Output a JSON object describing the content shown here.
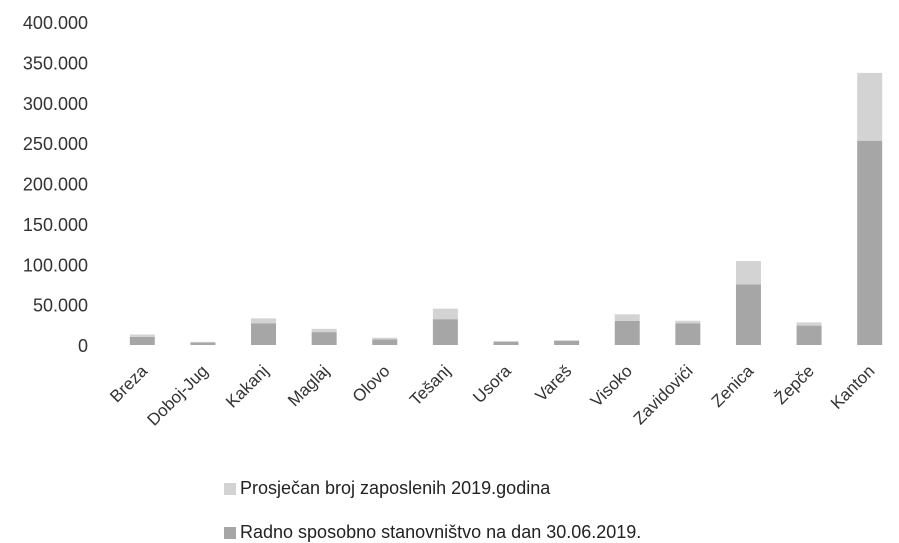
{
  "colors": {
    "employed": "#d3d3d3",
    "working_age": "#a6a6a6"
  },
  "chart_data": {
    "type": "bar",
    "stacked": true,
    "categories": [
      "Breza",
      "Doboj-Jug",
      "Kakanj",
      "Maglaj",
      "Olovo",
      "Tešanj",
      "Usora",
      "Vareš",
      "Visoko",
      "Zavidovići",
      "Zenica",
      "Žepče",
      "Kanton"
    ],
    "series": [
      {
        "name": "Radno sposobno stanovništvo na dan 30.06.2019.",
        "values": [
          10000,
          3000,
          27000,
          16000,
          7000,
          32000,
          4000,
          5000,
          30000,
          27000,
          75000,
          24000,
          253000
        ]
      },
      {
        "name": "Prosječan broj zaposlenih 2019.godina",
        "values": [
          3000,
          1000,
          6000,
          4000,
          2000,
          13000,
          1000,
          1000,
          8000,
          3000,
          29000,
          4000,
          84000
        ]
      }
    ],
    "ylim": [
      0,
      400000
    ],
    "yticks": [
      "0",
      "50.000",
      "100.000",
      "150.000",
      "200.000",
      "250.000",
      "300.000",
      "350.000",
      "400.000"
    ],
    "grid": false,
    "legend": "bottom"
  },
  "legend": {
    "employed_label": "Prosječan broj zaposlenih 2019.godina",
    "working_age_label": "Radno sposobno stanovništvo na dan 30.06.2019."
  }
}
